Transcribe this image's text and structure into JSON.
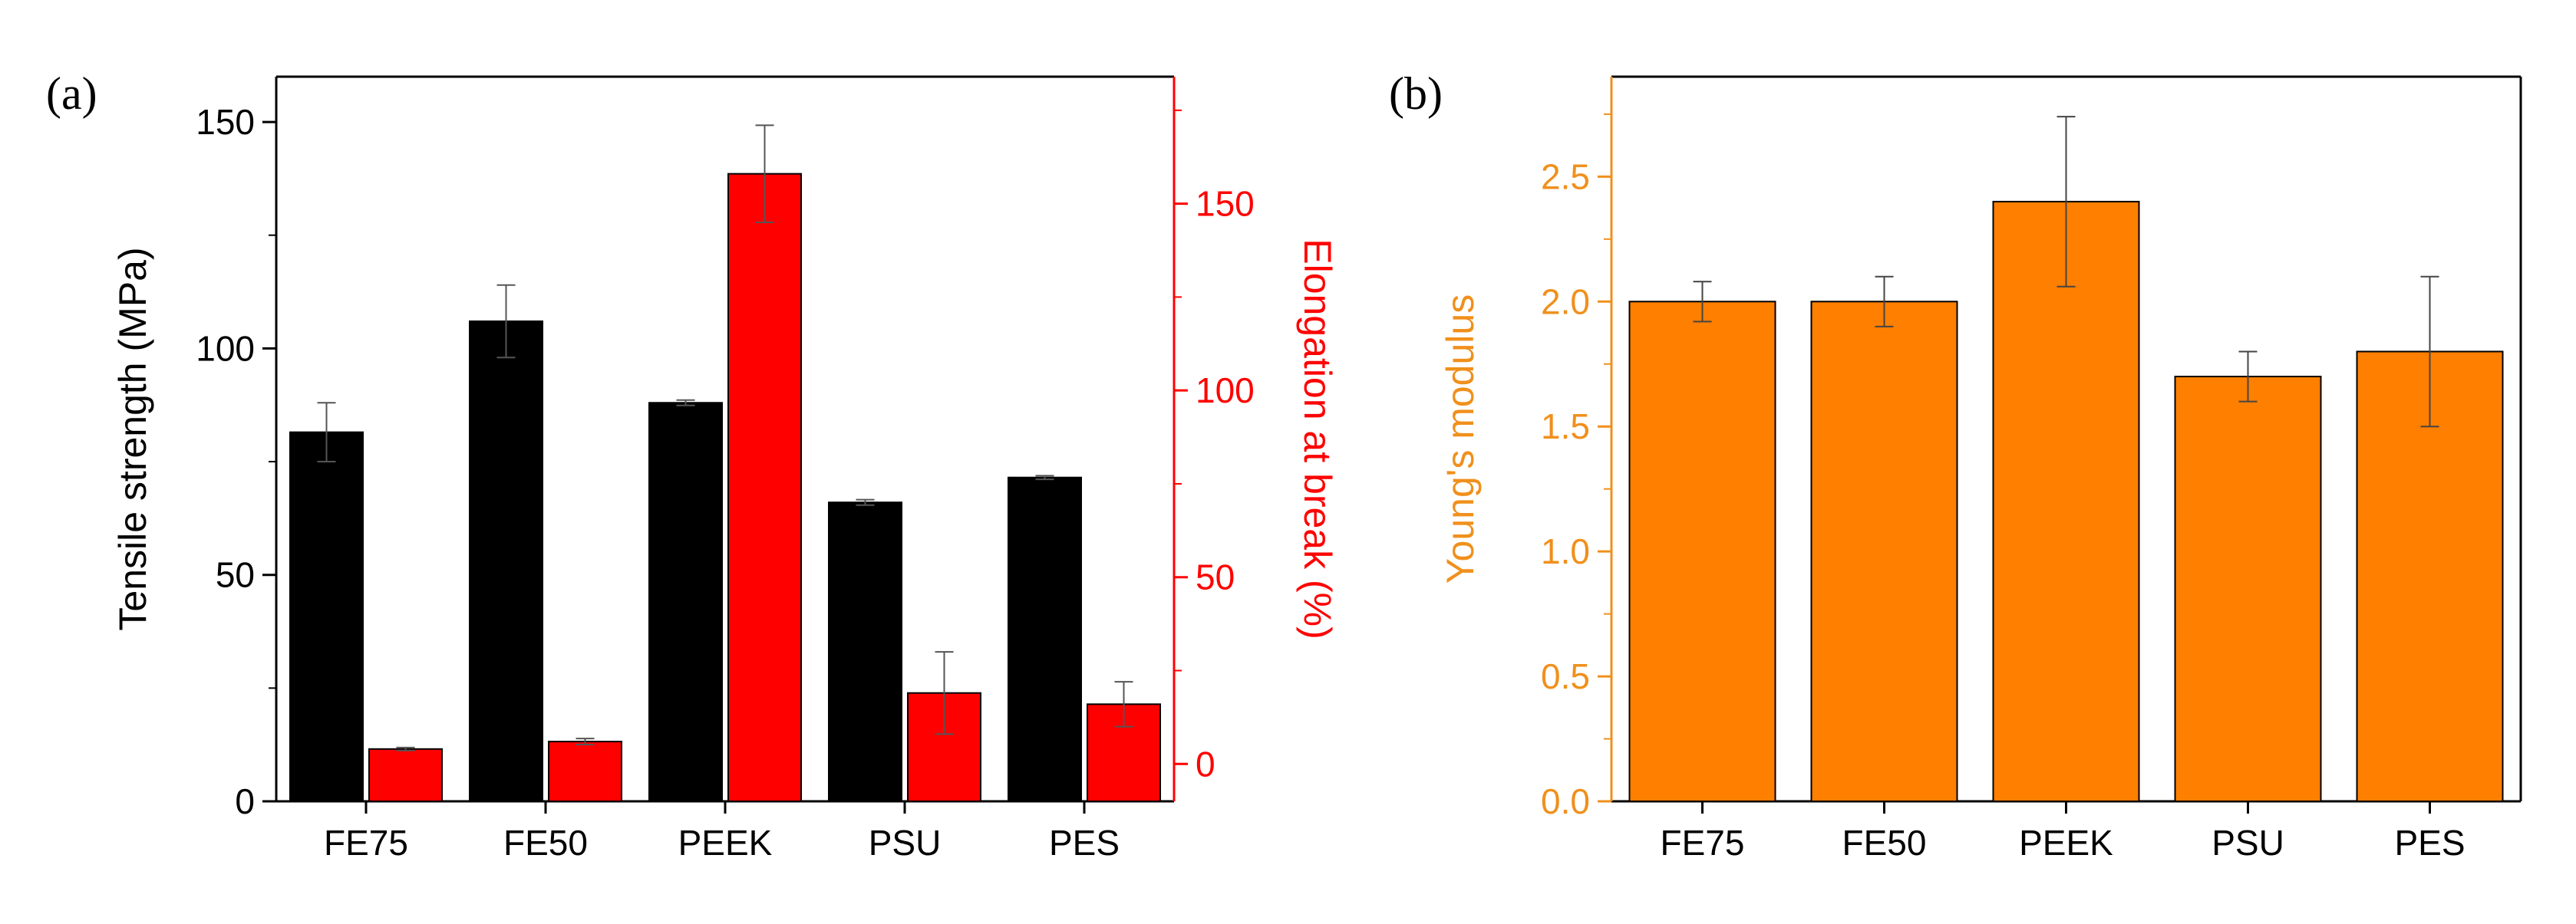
{
  "chart_data": [
    {
      "panel_label": "(a)",
      "type": "bar",
      "categories": [
        "FE75",
        "FE50",
        "PEEK",
        "PSU",
        "PES"
      ],
      "series": [
        {
          "name": "Tensile strength",
          "axis": "left",
          "color": "#000000",
          "values": [
            81.5,
            106,
            88,
            66,
            71.5
          ],
          "errors": [
            6.5,
            8,
            0.6,
            0.6,
            0.4
          ]
        },
        {
          "name": "Elongation at break",
          "axis": "right",
          "color": "#ff0000",
          "values": [
            4,
            6,
            158,
            19,
            16
          ],
          "errors": [
            0.4,
            0.8,
            13,
            11,
            6
          ]
        }
      ],
      "ylabel": "Tensile strength (MPa)",
      "y2label": "Elongation at break (%)",
      "ylim": [
        0,
        160
      ],
      "yticks": [
        0,
        50,
        100,
        150
      ],
      "ytick_labels": [
        "0",
        "50",
        "100",
        "150"
      ],
      "y2lim": [
        -10,
        184
      ],
      "y2ticks": [
        0,
        50,
        100,
        150
      ],
      "y2tick_labels": [
        "0",
        "50",
        "100",
        "150"
      ],
      "left_axis_color": "#000000",
      "right_axis_color": "#ff0000",
      "grid": false
    },
    {
      "panel_label": "(b)",
      "type": "bar",
      "categories": [
        "FE75",
        "FE50",
        "PEEK",
        "PSU",
        "PES"
      ],
      "series": [
        {
          "name": "Young's modulus",
          "color": "#ff7f00",
          "values": [
            2.0,
            2.0,
            2.4,
            1.7,
            1.8
          ],
          "errors": [
            0.08,
            0.1,
            0.34,
            0.1,
            0.3
          ]
        }
      ],
      "ylabel": "Young's modulus",
      "ylim": [
        0,
        2.9
      ],
      "yticks": [
        0.0,
        0.5,
        1.0,
        1.5,
        2.0,
        2.5
      ],
      "ytick_labels": [
        "0.0",
        "0.5",
        "1.0",
        "1.5",
        "2.0",
        "2.5"
      ],
      "axis_color": "#f0901c",
      "grid": false
    }
  ]
}
